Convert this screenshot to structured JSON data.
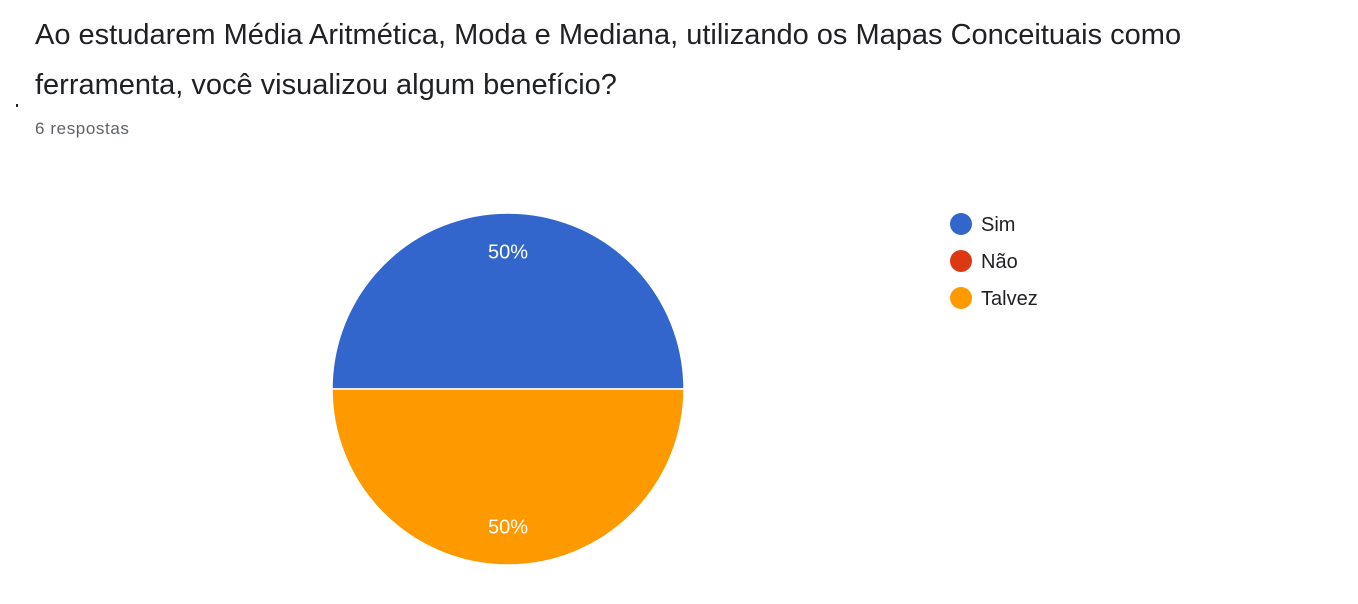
{
  "question": {
    "title": "Ao estudarem Média Aritmética, Moda e Mediana, utilizando os Mapas Conceituais como ferramenta, você visualizou algum benefício?",
    "response_count": "6 respostas"
  },
  "chart_data": {
    "type": "pie",
    "title": "",
    "legend_position": "right",
    "slices": [
      {
        "name": "Sim",
        "value": 50,
        "label": "50%",
        "color": "#3366cc"
      },
      {
        "name": "Não",
        "value": 0,
        "label": "",
        "color": "#dc3912"
      },
      {
        "name": "Talvez",
        "value": 50,
        "label": "50%",
        "color": "#ff9900"
      }
    ]
  }
}
